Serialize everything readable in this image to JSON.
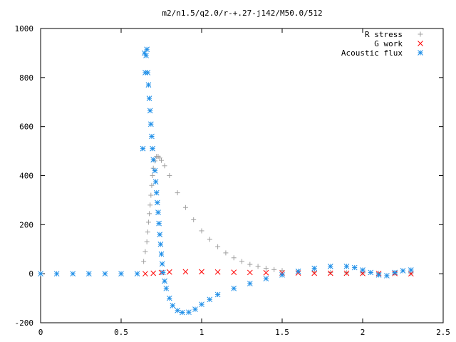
{
  "chart_data": {
    "type": "scatter",
    "title": "m2/n1.5/q2.0/r-+.27-j142/M50.0/512",
    "xlabel": "",
    "ylabel": "",
    "xlim": [
      0,
      2.5
    ],
    "ylim": [
      -200,
      1000
    ],
    "xticks": [
      "0",
      "0.5",
      "1",
      "1.5",
      "2",
      "2.5"
    ],
    "yticks": [
      "-200",
      "0",
      "200",
      "400",
      "600",
      "800",
      "1000"
    ],
    "grid": false,
    "legend_position": "top-right",
    "series": [
      {
        "name": "R stress",
        "color": "#a0a0a0",
        "marker": "plus",
        "points": [
          [
            0.64,
            50
          ],
          [
            0.65,
            90
          ],
          [
            0.66,
            130
          ],
          [
            0.665,
            170
          ],
          [
            0.67,
            210
          ],
          [
            0.675,
            245
          ],
          [
            0.68,
            280
          ],
          [
            0.685,
            320
          ],
          [
            0.69,
            360
          ],
          [
            0.695,
            400
          ],
          [
            0.7,
            430
          ],
          [
            0.71,
            460
          ],
          [
            0.72,
            478
          ],
          [
            0.73,
            478
          ],
          [
            0.74,
            472
          ],
          [
            0.75,
            462
          ],
          [
            0.77,
            440
          ],
          [
            0.8,
            400
          ],
          [
            0.85,
            330
          ],
          [
            0.9,
            270
          ],
          [
            0.95,
            220
          ],
          [
            1.0,
            175
          ],
          [
            1.05,
            140
          ],
          [
            1.1,
            110
          ],
          [
            1.15,
            85
          ],
          [
            1.2,
            65
          ],
          [
            1.25,
            50
          ],
          [
            1.3,
            38
          ],
          [
            1.35,
            30
          ],
          [
            1.4,
            22
          ],
          [
            1.45,
            17
          ],
          [
            1.5,
            13
          ],
          [
            1.6,
            9
          ],
          [
            1.7,
            7
          ],
          [
            1.8,
            5
          ],
          [
            1.9,
            4
          ],
          [
            2.0,
            3
          ],
          [
            2.1,
            2
          ],
          [
            2.2,
            1
          ],
          [
            2.3,
            1
          ]
        ]
      },
      {
        "name": "G work",
        "color": "#ff0000",
        "marker": "cross",
        "points": [
          [
            0.65,
            0
          ],
          [
            0.7,
            2
          ],
          [
            0.75,
            5
          ],
          [
            0.8,
            7
          ],
          [
            0.9,
            8
          ],
          [
            1.0,
            8
          ],
          [
            1.1,
            7
          ],
          [
            1.2,
            6
          ],
          [
            1.3,
            5
          ],
          [
            1.4,
            4
          ],
          [
            1.5,
            3
          ],
          [
            1.6,
            3
          ],
          [
            1.7,
            2
          ],
          [
            1.8,
            2
          ],
          [
            1.9,
            2
          ],
          [
            2.0,
            1
          ],
          [
            2.1,
            1
          ],
          [
            2.2,
            1
          ],
          [
            2.3,
            0
          ]
        ]
      },
      {
        "name": "Acoustic flux",
        "color": "#1f8fe8",
        "marker": "star",
        "points": [
          [
            0.0,
            0
          ],
          [
            0.1,
            0
          ],
          [
            0.2,
            0
          ],
          [
            0.3,
            0
          ],
          [
            0.4,
            0
          ],
          [
            0.5,
            0
          ],
          [
            0.6,
            0
          ],
          [
            0.635,
            510
          ],
          [
            0.645,
            900
          ],
          [
            0.65,
            820
          ],
          [
            0.655,
            890
          ],
          [
            0.66,
            915
          ],
          [
            0.665,
            820
          ],
          [
            0.67,
            770
          ],
          [
            0.675,
            715
          ],
          [
            0.68,
            665
          ],
          [
            0.685,
            610
          ],
          [
            0.69,
            560
          ],
          [
            0.695,
            510
          ],
          [
            0.7,
            465
          ],
          [
            0.71,
            420
          ],
          [
            0.715,
            375
          ],
          [
            0.72,
            330
          ],
          [
            0.725,
            290
          ],
          [
            0.73,
            250
          ],
          [
            0.735,
            205
          ],
          [
            0.74,
            160
          ],
          [
            0.745,
            120
          ],
          [
            0.75,
            80
          ],
          [
            0.755,
            40
          ],
          [
            0.76,
            5
          ],
          [
            0.77,
            -30
          ],
          [
            0.78,
            -60
          ],
          [
            0.8,
            -100
          ],
          [
            0.82,
            -130
          ],
          [
            0.85,
            -150
          ],
          [
            0.88,
            -158
          ],
          [
            0.92,
            -157
          ],
          [
            0.96,
            -145
          ],
          [
            1.0,
            -125
          ],
          [
            1.05,
            -105
          ],
          [
            1.1,
            -85
          ],
          [
            1.2,
            -60
          ],
          [
            1.3,
            -40
          ],
          [
            1.4,
            -20
          ],
          [
            1.5,
            -5
          ],
          [
            1.6,
            10
          ],
          [
            1.7,
            22
          ],
          [
            1.8,
            30
          ],
          [
            1.9,
            30
          ],
          [
            1.95,
            25
          ],
          [
            2.0,
            15
          ],
          [
            2.05,
            5
          ],
          [
            2.1,
            -5
          ],
          [
            2.15,
            -8
          ],
          [
            2.2,
            5
          ],
          [
            2.25,
            12
          ],
          [
            2.3,
            15
          ]
        ]
      }
    ]
  }
}
